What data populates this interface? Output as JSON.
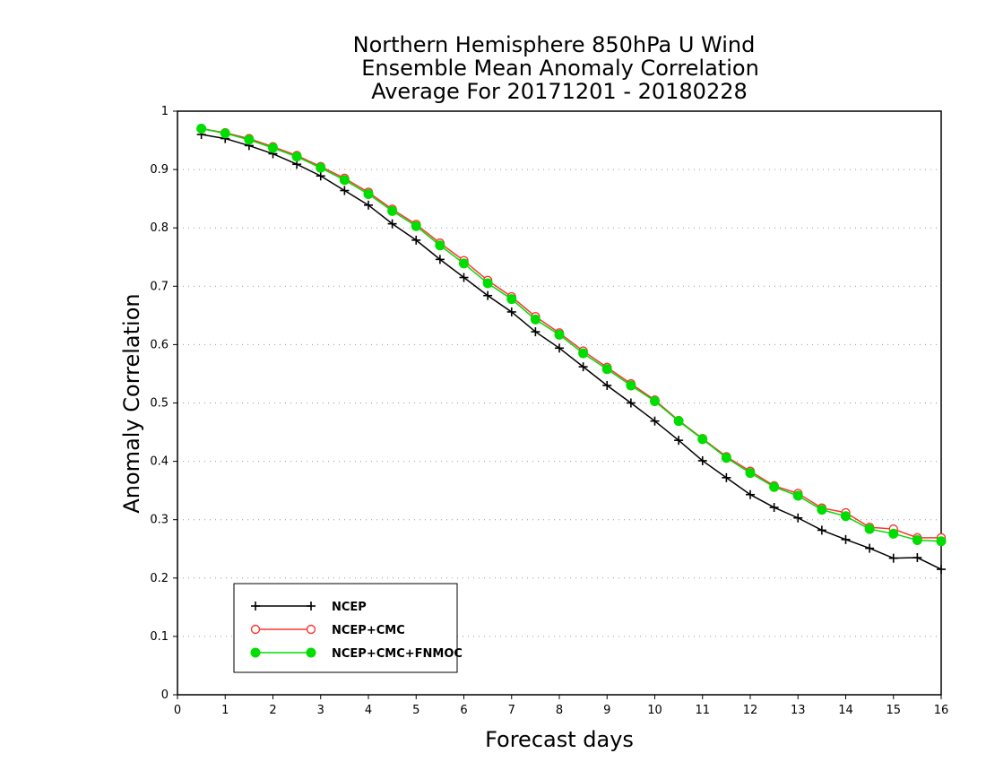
{
  "chart_data": {
    "type": "line",
    "title": [
      "Northern Hemisphere 850hPa U Wind",
      "Ensemble Mean Anomaly Correlation",
      "Average For 20171201 - 20180228"
    ],
    "xlabel": "Forecast days",
    "ylabel": "Anomaly Correlation",
    "xlim": [
      0,
      16
    ],
    "ylim": [
      0,
      1
    ],
    "x_ticks": [
      "0",
      "1",
      "2",
      "3",
      "4",
      "5",
      "6",
      "7",
      "8",
      "9",
      "10",
      "11",
      "12",
      "13",
      "14",
      "15",
      "16"
    ],
    "y_ticks": [
      "0",
      "0.1",
      "0.2",
      "0.3",
      "0.4",
      "0.5",
      "0.6",
      "0.7",
      "0.8",
      "0.9",
      "1"
    ],
    "grid": "horizontal dotted",
    "legend_position": "bottom-left",
    "x": [
      0.5,
      1,
      1.5,
      2,
      2.5,
      3,
      3.5,
      4,
      4.5,
      5,
      5.5,
      6,
      6.5,
      7,
      7.5,
      8,
      8.5,
      9,
      9.5,
      10,
      10.5,
      11,
      11.5,
      12,
      12.5,
      13,
      13.5,
      14,
      14.5,
      15,
      15.5,
      16
    ],
    "series": [
      {
        "name": "NCEP",
        "color": "#000000",
        "marker": "plus",
        "values": [
          0.96,
          0.953,
          0.941,
          0.927,
          0.909,
          0.889,
          0.864,
          0.839,
          0.807,
          0.779,
          0.746,
          0.715,
          0.684,
          0.656,
          0.622,
          0.594,
          0.562,
          0.53,
          0.5,
          0.469,
          0.436,
          0.401,
          0.372,
          0.343,
          0.321,
          0.303,
          0.282,
          0.266,
          0.251,
          0.234,
          0.235,
          0.215
        ]
      },
      {
        "name": "NCEP+CMC",
        "color": "#ff3333",
        "marker": "open-circle",
        "values": [
          0.97,
          0.963,
          0.953,
          0.939,
          0.924,
          0.905,
          0.885,
          0.861,
          0.832,
          0.806,
          0.774,
          0.744,
          0.71,
          0.682,
          0.648,
          0.62,
          0.589,
          0.561,
          0.533,
          0.505,
          0.47,
          0.439,
          0.408,
          0.383,
          0.358,
          0.345,
          0.32,
          0.312,
          0.287,
          0.284,
          0.269,
          0.269
        ]
      },
      {
        "name": "NCEP+CMC+FNMOC",
        "color": "#00dd00",
        "marker": "filled-circle",
        "values": [
          0.97,
          0.962,
          0.951,
          0.937,
          0.922,
          0.903,
          0.882,
          0.858,
          0.829,
          0.803,
          0.77,
          0.739,
          0.705,
          0.678,
          0.643,
          0.617,
          0.585,
          0.558,
          0.53,
          0.503,
          0.469,
          0.438,
          0.406,
          0.38,
          0.356,
          0.341,
          0.317,
          0.306,
          0.284,
          0.276,
          0.265,
          0.263
        ]
      }
    ]
  }
}
